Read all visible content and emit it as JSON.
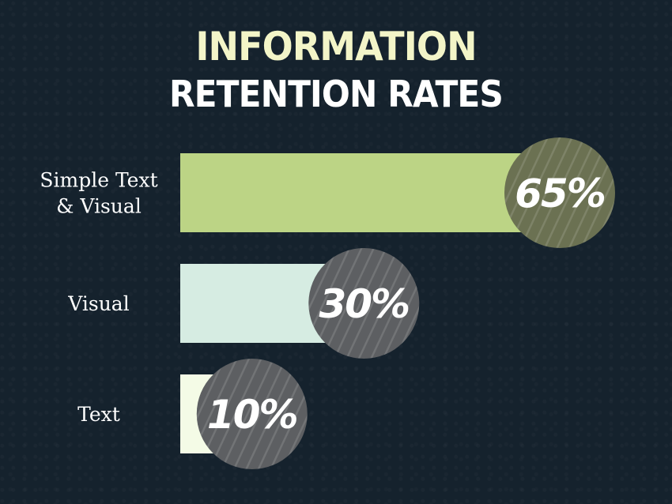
{
  "chart_data": {
    "type": "bar",
    "orientation": "horizontal",
    "title_line1": "INFORMATION",
    "title_line2": "RETENTION RATES",
    "categories": [
      [
        "Simple Text",
        "& Visual"
      ],
      [
        "Visual"
      ],
      [
        "Text"
      ]
    ],
    "values": [
      65,
      30,
      10
    ],
    "value_labels": [
      "65%",
      "30%",
      "10%"
    ],
    "unit": "%",
    "xlim": [
      0,
      100
    ],
    "grid": false,
    "legend": "none",
    "bar_colors": [
      "#bcd485",
      "#d6ece2",
      "#f4fbe6"
    ],
    "badge_colors": [
      "#6b7152",
      "#5d5f62",
      "#5d5f62"
    ]
  }
}
